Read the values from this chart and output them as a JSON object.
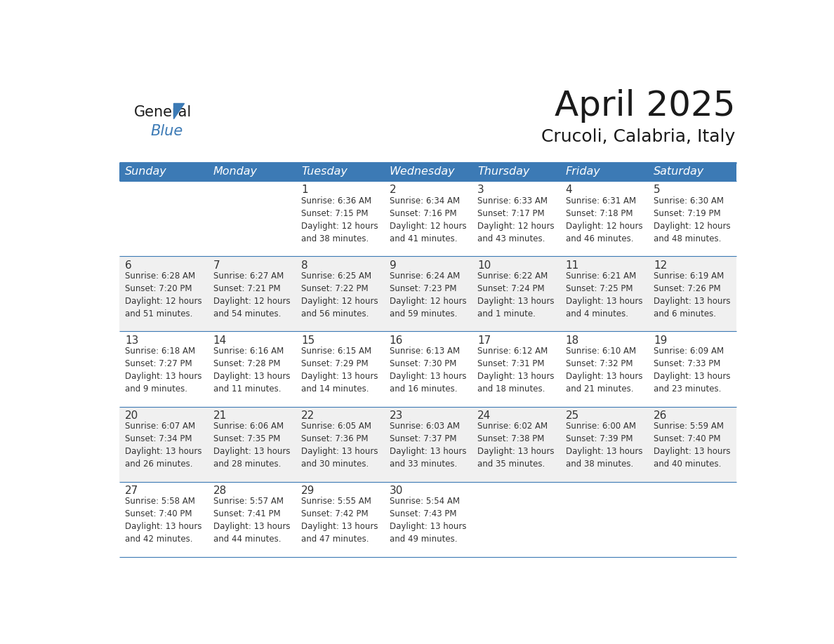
{
  "title": "April 2025",
  "subtitle": "Crucoli, Calabria, Italy",
  "header_bg_color": "#3C7AB5",
  "header_text_color": "#FFFFFF",
  "row_bg_color_1": "#FFFFFF",
  "row_bg_color_2": "#F0F0F0",
  "grid_line_color": "#3C7AB5",
  "text_color": "#333333",
  "day_headers": [
    "Sunday",
    "Monday",
    "Tuesday",
    "Wednesday",
    "Thursday",
    "Friday",
    "Saturday"
  ],
  "weeks": [
    [
      {
        "day": "",
        "info": ""
      },
      {
        "day": "",
        "info": ""
      },
      {
        "day": "1",
        "info": "Sunrise: 6:36 AM\nSunset: 7:15 PM\nDaylight: 12 hours\nand 38 minutes."
      },
      {
        "day": "2",
        "info": "Sunrise: 6:34 AM\nSunset: 7:16 PM\nDaylight: 12 hours\nand 41 minutes."
      },
      {
        "day": "3",
        "info": "Sunrise: 6:33 AM\nSunset: 7:17 PM\nDaylight: 12 hours\nand 43 minutes."
      },
      {
        "day": "4",
        "info": "Sunrise: 6:31 AM\nSunset: 7:18 PM\nDaylight: 12 hours\nand 46 minutes."
      },
      {
        "day": "5",
        "info": "Sunrise: 6:30 AM\nSunset: 7:19 PM\nDaylight: 12 hours\nand 48 minutes."
      }
    ],
    [
      {
        "day": "6",
        "info": "Sunrise: 6:28 AM\nSunset: 7:20 PM\nDaylight: 12 hours\nand 51 minutes."
      },
      {
        "day": "7",
        "info": "Sunrise: 6:27 AM\nSunset: 7:21 PM\nDaylight: 12 hours\nand 54 minutes."
      },
      {
        "day": "8",
        "info": "Sunrise: 6:25 AM\nSunset: 7:22 PM\nDaylight: 12 hours\nand 56 minutes."
      },
      {
        "day": "9",
        "info": "Sunrise: 6:24 AM\nSunset: 7:23 PM\nDaylight: 12 hours\nand 59 minutes."
      },
      {
        "day": "10",
        "info": "Sunrise: 6:22 AM\nSunset: 7:24 PM\nDaylight: 13 hours\nand 1 minute."
      },
      {
        "day": "11",
        "info": "Sunrise: 6:21 AM\nSunset: 7:25 PM\nDaylight: 13 hours\nand 4 minutes."
      },
      {
        "day": "12",
        "info": "Sunrise: 6:19 AM\nSunset: 7:26 PM\nDaylight: 13 hours\nand 6 minutes."
      }
    ],
    [
      {
        "day": "13",
        "info": "Sunrise: 6:18 AM\nSunset: 7:27 PM\nDaylight: 13 hours\nand 9 minutes."
      },
      {
        "day": "14",
        "info": "Sunrise: 6:16 AM\nSunset: 7:28 PM\nDaylight: 13 hours\nand 11 minutes."
      },
      {
        "day": "15",
        "info": "Sunrise: 6:15 AM\nSunset: 7:29 PM\nDaylight: 13 hours\nand 14 minutes."
      },
      {
        "day": "16",
        "info": "Sunrise: 6:13 AM\nSunset: 7:30 PM\nDaylight: 13 hours\nand 16 minutes."
      },
      {
        "day": "17",
        "info": "Sunrise: 6:12 AM\nSunset: 7:31 PM\nDaylight: 13 hours\nand 18 minutes."
      },
      {
        "day": "18",
        "info": "Sunrise: 6:10 AM\nSunset: 7:32 PM\nDaylight: 13 hours\nand 21 minutes."
      },
      {
        "day": "19",
        "info": "Sunrise: 6:09 AM\nSunset: 7:33 PM\nDaylight: 13 hours\nand 23 minutes."
      }
    ],
    [
      {
        "day": "20",
        "info": "Sunrise: 6:07 AM\nSunset: 7:34 PM\nDaylight: 13 hours\nand 26 minutes."
      },
      {
        "day": "21",
        "info": "Sunrise: 6:06 AM\nSunset: 7:35 PM\nDaylight: 13 hours\nand 28 minutes."
      },
      {
        "day": "22",
        "info": "Sunrise: 6:05 AM\nSunset: 7:36 PM\nDaylight: 13 hours\nand 30 minutes."
      },
      {
        "day": "23",
        "info": "Sunrise: 6:03 AM\nSunset: 7:37 PM\nDaylight: 13 hours\nand 33 minutes."
      },
      {
        "day": "24",
        "info": "Sunrise: 6:02 AM\nSunset: 7:38 PM\nDaylight: 13 hours\nand 35 minutes."
      },
      {
        "day": "25",
        "info": "Sunrise: 6:00 AM\nSunset: 7:39 PM\nDaylight: 13 hours\nand 38 minutes."
      },
      {
        "day": "26",
        "info": "Sunrise: 5:59 AM\nSunset: 7:40 PM\nDaylight: 13 hours\nand 40 minutes."
      }
    ],
    [
      {
        "day": "27",
        "info": "Sunrise: 5:58 AM\nSunset: 7:40 PM\nDaylight: 13 hours\nand 42 minutes."
      },
      {
        "day": "28",
        "info": "Sunrise: 5:57 AM\nSunset: 7:41 PM\nDaylight: 13 hours\nand 44 minutes."
      },
      {
        "day": "29",
        "info": "Sunrise: 5:55 AM\nSunset: 7:42 PM\nDaylight: 13 hours\nand 47 minutes."
      },
      {
        "day": "30",
        "info": "Sunrise: 5:54 AM\nSunset: 7:43 PM\nDaylight: 13 hours\nand 49 minutes."
      },
      {
        "day": "",
        "info": ""
      },
      {
        "day": "",
        "info": ""
      },
      {
        "day": "",
        "info": ""
      }
    ]
  ],
  "logo_general_color": "#1a1a1a",
  "logo_blue_color": "#3C7AB5",
  "logo_triangle_color": "#3C7AB5",
  "title_fontsize": 36,
  "subtitle_fontsize": 18,
  "header_fontsize": 11.5,
  "day_num_fontsize": 11,
  "info_fontsize": 8.5
}
